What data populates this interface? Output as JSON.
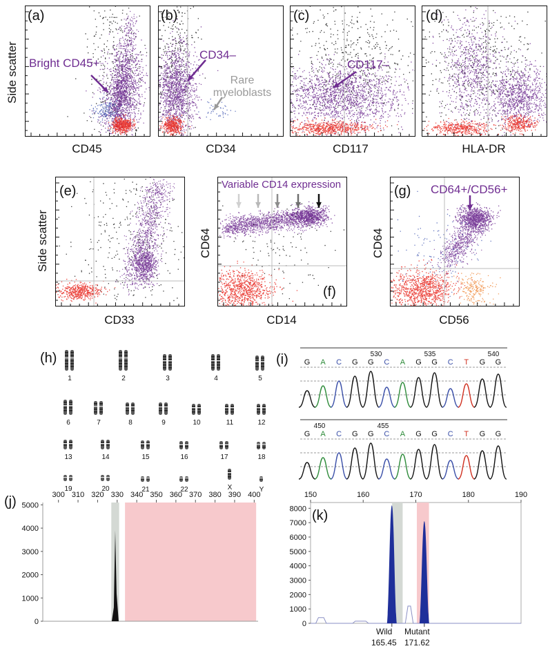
{
  "flow_panels": {
    "a": {
      "label": "(a)",
      "xlabel": "CD45",
      "ylabel": "Side scatter",
      "annotation": "Bright CD45+"
    },
    "b": {
      "label": "(b)",
      "xlabel": "CD34",
      "annotation": "CD34–",
      "annotation2": "Rare myeloblasts"
    },
    "c": {
      "label": "(c)",
      "xlabel": "CD117",
      "annotation": "CD117–"
    },
    "d": {
      "label": "(d)",
      "xlabel": "HLA-DR"
    },
    "e": {
      "label": "(e)",
      "xlabel": "CD33",
      "ylabel": "Side scatter"
    },
    "f": {
      "label": "(f)",
      "xlabel": "CD14",
      "ylabel": "CD64",
      "annotation": "Variable CD14 expression"
    },
    "g": {
      "label": "(g)",
      "xlabel": "CD56",
      "ylabel": "CD64",
      "annotation": "CD64+/CD56+"
    }
  },
  "karyotype": {
    "label": "(h)",
    "chromosomes": [
      "1",
      "2",
      "3",
      "4",
      "5",
      "6",
      "7",
      "8",
      "9",
      "10",
      "11",
      "12",
      "13",
      "14",
      "15",
      "16",
      "17",
      "18",
      "19",
      "20",
      "21",
      "22",
      "X",
      "Y"
    ]
  },
  "sequencing": {
    "label": "(i)",
    "top": {
      "positions": [
        "530",
        "535",
        "540"
      ],
      "bases": [
        "G",
        "A",
        "C",
        "G",
        "G",
        "C",
        "A",
        "G",
        "G",
        "C",
        "T",
        "G",
        "G"
      ]
    },
    "bottom": {
      "positions": [
        "450",
        "455"
      ],
      "bases": [
        "G",
        "A",
        "C",
        "G",
        "G",
        "C",
        "A",
        "G",
        "G",
        "C",
        "T",
        "G",
        "G"
      ]
    },
    "base_colors": {
      "G": "#111111",
      "A": "#2e8b3a",
      "C": "#3a4fa8",
      "T": "#d03020"
    }
  },
  "chart_data": [
    {
      "panel": "j",
      "label": "(j)",
      "type": "area",
      "x_ticks": [
        300,
        310,
        320,
        330,
        340,
        350,
        360,
        370,
        380,
        390,
        400
      ],
      "y_ticks": [
        0,
        1000,
        2000,
        3000,
        4000,
        5000
      ],
      "xlim": [
        292,
        402
      ],
      "ylim": [
        0,
        5100
      ],
      "peak": {
        "x": 329,
        "y": 3900
      },
      "gray_band": [
        327,
        331
      ],
      "pink_band": [
        334,
        401
      ]
    },
    {
      "panel": "k",
      "label": "(k)",
      "type": "area",
      "x_ticks": [
        150,
        160,
        170,
        180,
        190
      ],
      "y_ticks": [
        0,
        1000,
        2000,
        3000,
        4000,
        5000,
        6000,
        7000,
        8000
      ],
      "xlim": [
        150,
        190
      ],
      "ylim": [
        0,
        8400
      ],
      "peaks": [
        {
          "name": "Wild",
          "x": 165.45,
          "y": 8200
        },
        {
          "name": "Mutant",
          "x": 171.62,
          "y": 7100
        }
      ],
      "peak_labels": [
        "Wild",
        "165.45",
        "Mutant",
        "171.62"
      ],
      "gray_band": [
        165.5,
        167.5
      ],
      "pink_band": [
        170.2,
        172.5
      ]
    }
  ],
  "colors": {
    "purple": "#6f2d91",
    "red": "#e8231b",
    "orange": "#f08a3c",
    "blue": "#4a5fb5",
    "pink": "#f7c9cc",
    "gray": "#d4d9d4",
    "navy": "#1f2f9a"
  }
}
